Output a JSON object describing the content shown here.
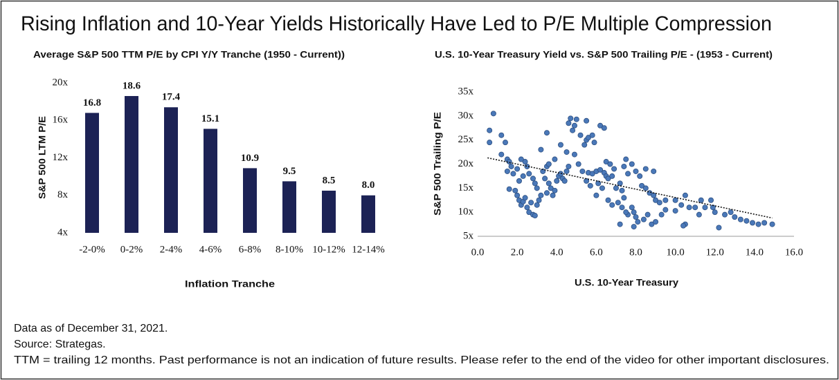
{
  "title": "Rising Inflation and 10-Year Yields Historically Have Led to P/E Multiple Compression",
  "notes": [
    "Data as of December 31, 2021.",
    "Source:  Strategas.",
    "TTM = trailing 12 months.  Past performance is not an indication of future results.  Please refer to the end of the video for other important disclosures."
  ],
  "chart_data": [
    {
      "type": "bar",
      "title": "Average S&P 500 TTM P/E by CPI Y/Y Tranche (1950 - Current))",
      "x_label": "Inflation Tranche",
      "y_label": "S&P 500 LTM P/E",
      "categories": [
        "-2-0%",
        "0-2%",
        "2-4%",
        "4-6%",
        "6-8%",
        "8-10%",
        "10-12%",
        "12-14%"
      ],
      "values": [
        16.8,
        18.6,
        17.4,
        15.1,
        10.9,
        9.5,
        8.5,
        8.0
      ],
      "value_labels": [
        "16.8",
        "18.6",
        "17.4",
        "15.1",
        "10.9",
        "9.5",
        "8.5",
        "8.0"
      ],
      "color": "#1c2255",
      "ylim": [
        4,
        20
      ],
      "yticks": [
        {
          "value": 4,
          "label": "4x"
        },
        {
          "value": 8,
          "label": "8x"
        },
        {
          "value": 12,
          "label": "12x"
        },
        {
          "value": 16,
          "label": "16x"
        },
        {
          "value": 20,
          "label": "20x"
        }
      ]
    },
    {
      "type": "scatter",
      "title": "U.S. 10-Year Treasury Yield vs. S&P 500 Trailing P/E  - (1953 - Current)",
      "x_label": "U.S. 10-Year Treasury",
      "y_label": "S&P 500 Trailing P/E",
      "color": "#4a78b8",
      "x": [
        0.6,
        0.6,
        0.8,
        1.2,
        1.4,
        1.2,
        1.5,
        1.6,
        1.7,
        1.5,
        1.8,
        1.6,
        1.9,
        2.0,
        2.1,
        2.2,
        2.3,
        2.4,
        2.5,
        2.6,
        2.8,
        2.9,
        2.7,
        3.0,
        3.1,
        3.2,
        3.0,
        2.9,
        2.8,
        2.6,
        2.5,
        2.4,
        2.2,
        2.0,
        2.3,
        2.1,
        3.3,
        3.5,
        3.4,
        3.6,
        3.7,
        3.5,
        3.8,
        3.9,
        4.0,
        4.1,
        4.2,
        4.3,
        4.4,
        4.5,
        4.6,
        3.9,
        3.6,
        3.2,
        3.5,
        4.2,
        4.5,
        4.6,
        4.7,
        4.8,
        4.9,
        5.0,
        5.2,
        5.4,
        5.5,
        5.6,
        5.8,
        5.9,
        6.2,
        6.4,
        5.5,
        4.9,
        5.1,
        5.3,
        5.6,
        5.8,
        6.0,
        6.2,
        6.4,
        6.5,
        6.6,
        6.8,
        6.1,
        6.3,
        6.0,
        5.7,
        5.5,
        6.5,
        6.7,
        6.9,
        7.0,
        7.2,
        7.3,
        7.4,
        7.1,
        6.8,
        6.6,
        7.5,
        7.4,
        7.6,
        7.8,
        8.0,
        8.2,
        8.5,
        8.9,
        8.3,
        8.5,
        8.7,
        8.9,
        9.0,
        9.2,
        9.5,
        7.8,
        7.9,
        8.0,
        8.1,
        7.6,
        7.5,
        7.3,
        7.9,
        8.4,
        8.6,
        8.8,
        9.0,
        9.3,
        10.0,
        10.3,
        10.5,
        10.7,
        10.5,
        10.4,
        11.0,
        11.2,
        11.3,
        11.5,
        11.8,
        11.9,
        12.0,
        12.2,
        12.5,
        12.8,
        13.0,
        13.3,
        13.6,
        13.9,
        14.2,
        14.5,
        14.9,
        7.2,
        9.5,
        10.0
      ],
      "values": [
        27,
        24.5,
        30.5,
        26,
        24.5,
        22,
        21,
        20.5,
        19.5,
        18.5,
        18,
        14.8,
        14.5,
        13.5,
        12.5,
        11.5,
        12.2,
        13,
        11,
        10,
        9.5,
        9.3,
        12,
        11.5,
        12.5,
        13.5,
        15,
        16,
        17,
        18,
        19.5,
        20.5,
        21,
        19,
        17.5,
        16.5,
        18.5,
        19.5,
        17,
        16,
        15,
        14,
        13.5,
        14.5,
        16.5,
        17.5,
        18,
        17,
        16.5,
        18.5,
        19.5,
        21,
        20,
        23,
        26.5,
        24,
        22.5,
        28.5,
        29.5,
        27,
        28,
        29.3,
        26,
        24,
        25,
        25.5,
        26,
        24.5,
        28,
        27.5,
        29,
        22,
        20,
        18.5,
        18.2,
        18,
        18.5,
        18.8,
        18.2,
        17.5,
        17,
        17.5,
        16,
        15,
        13.5,
        15.5,
        16.5,
        20.5,
        20,
        19,
        15,
        16,
        14.5,
        13,
        12,
        11.5,
        12.5,
        21,
        19.5,
        18,
        20,
        18.5,
        17.5,
        19,
        18.5,
        15.5,
        15,
        14,
        13.5,
        12.5,
        12,
        12.5,
        11,
        10,
        9,
        8,
        9.5,
        10,
        11,
        7,
        8.5,
        9.5,
        7.5,
        8,
        9.5,
        12.5,
        11.5,
        13.5,
        11,
        7.5,
        7.2,
        11,
        9.5,
        12.5,
        11,
        12.5,
        11,
        10,
        6.8,
        9.5,
        10,
        9,
        8.5,
        8.2,
        7.8,
        7.5,
        7.8,
        7.5,
        7.5,
        10.5,
        10.3
      ],
      "trendline": {
        "x": [
          0.5,
          14.9
        ],
        "y": [
          21.3,
          8.8
        ]
      },
      "xlim": [
        0,
        16
      ],
      "xticks": [
        {
          "value": 0,
          "label": "0.0"
        },
        {
          "value": 2,
          "label": "2.0"
        },
        {
          "value": 4,
          "label": "4.0"
        },
        {
          "value": 6,
          "label": "6.0"
        },
        {
          "value": 8,
          "label": "8.0"
        },
        {
          "value": 10,
          "label": "10.0"
        },
        {
          "value": 12,
          "label": "12.0"
        },
        {
          "value": 14,
          "label": "14.0"
        },
        {
          "value": 16,
          "label": "16.0"
        }
      ],
      "ylim": [
        5,
        35
      ],
      "yticks": [
        {
          "value": 5,
          "label": "5x"
        },
        {
          "value": 10,
          "label": "10x"
        },
        {
          "value": 15,
          "label": "15x"
        },
        {
          "value": 20,
          "label": "20x"
        },
        {
          "value": 25,
          "label": "25x"
        },
        {
          "value": 30,
          "label": "30x"
        },
        {
          "value": 35,
          "label": "35x"
        }
      ]
    }
  ]
}
